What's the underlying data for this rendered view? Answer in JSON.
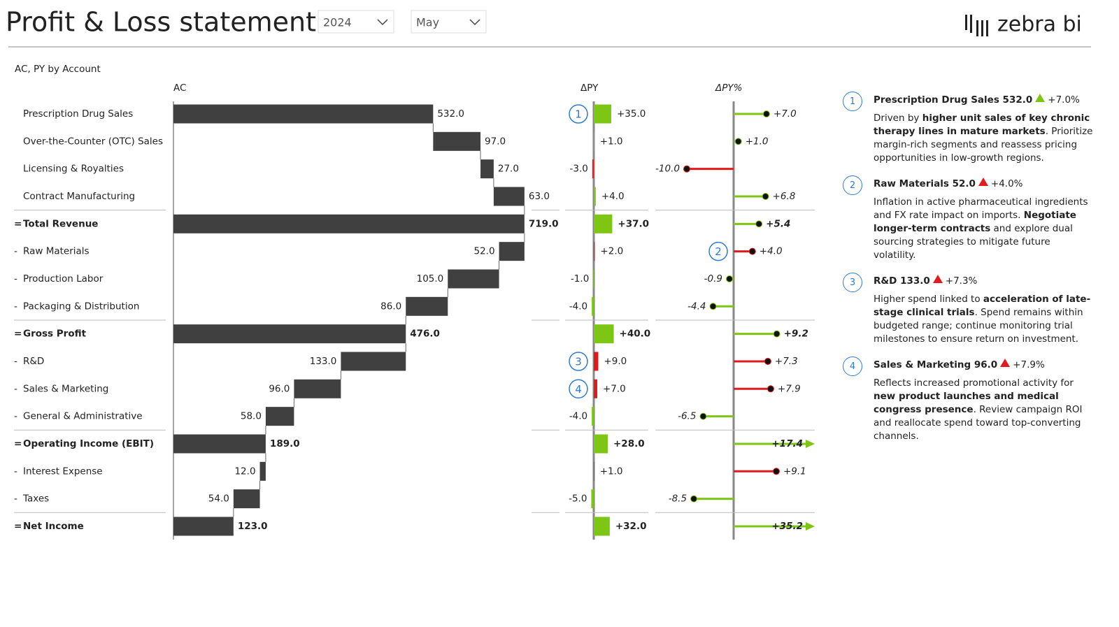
{
  "header": {
    "title": "Profit & Loss statement",
    "filters": [
      "2024",
      "May"
    ],
    "logo": "zebra bi"
  },
  "chart_data": {
    "type": "waterfall",
    "title": "AC, PY by Account",
    "categories": [
      "Prescription Drug Sales",
      "Over-the-Counter (OTC) Sales",
      "Licensing & Royalties",
      "Contract Manufacturing",
      "Total Revenue",
      "Raw Materials",
      "Production Labor",
      "Packaging & Distribution",
      "Gross Profit",
      "R&D",
      "Sales & Marketing",
      "General & Administrative",
      "Operating Income (EBIT)",
      "Interest Expense",
      "Taxes",
      "Net Income"
    ],
    "prefixes": [
      null,
      null,
      null,
      null,
      "=",
      "-",
      "-",
      "-",
      "=",
      "-",
      "-",
      "-",
      "=",
      "-",
      "-",
      "="
    ],
    "series": [
      {
        "name": "AC",
        "color": "#404040",
        "values": [
          532.0,
          97.0,
          27.0,
          63.0,
          719.0,
          52.0,
          105.0,
          86.0,
          476.0,
          133.0,
          96.0,
          58.0,
          189.0,
          12.0,
          54.0,
          123.0
        ],
        "value_labels": [
          "532.0",
          "97.0",
          "27.0",
          "63.0",
          "719.0",
          "52.0",
          "105.0",
          "86.0",
          "476.0",
          "133.0",
          "96.0",
          "58.0",
          "189.0",
          "12.0",
          "54.0",
          "123.0"
        ]
      },
      {
        "name": "ΔPY",
        "values": [
          35.0,
          1.0,
          -3.0,
          4.0,
          37.0,
          2.0,
          -1.0,
          -4.0,
          40.0,
          9.0,
          7.0,
          -4.0,
          28.0,
          1.0,
          -5.0,
          32.0
        ],
        "value_labels": [
          "+35.0",
          "+1.0",
          "-3.0",
          "+4.0",
          "+37.0",
          "+2.0",
          "-1.0",
          "-4.0",
          "+40.0",
          "+9.0",
          "+7.0",
          "-4.0",
          "+28.0",
          "+1.0",
          "-5.0",
          "+32.0"
        ],
        "colors": [
          "#7dc614",
          "#7dc614",
          "#e31a1c",
          "#7dc614",
          "#7dc614",
          "#e31a1c",
          "#7dc614",
          "#7dc614",
          "#7dc614",
          "#e31a1c",
          "#e31a1c",
          "#7dc614",
          "#7dc614",
          "#e31a1c",
          "#7dc614",
          "#7dc614"
        ]
      },
      {
        "name": "ΔPY%",
        "values": [
          7.0,
          1.0,
          -10.0,
          6.8,
          5.4,
          4.0,
          -0.9,
          -4.4,
          9.2,
          7.3,
          7.9,
          -6.5,
          17.4,
          9.1,
          -8.5,
          35.2
        ],
        "value_labels": [
          "+7.0",
          "+1.0",
          "-10.0",
          "+6.8",
          "+5.4",
          "+4.0",
          "-0.9",
          "-4.4",
          "+9.2",
          "+7.3",
          "+7.9",
          "-6.5",
          "+17.4",
          "+9.1",
          "-8.5",
          "+35.2"
        ],
        "colors": [
          "#7dc614",
          "#7dc614",
          "#e31a1c",
          "#7dc614",
          "#7dc614",
          "#e31a1c",
          "#7dc614",
          "#7dc614",
          "#7dc614",
          "#e31a1c",
          "#e31a1c",
          "#7dc614",
          "#7dc614",
          "#e31a1c",
          "#7dc614",
          "#7dc614"
        ]
      }
    ]
  },
  "notes": [
    {
      "number": 1,
      "row": 0,
      "series": 1,
      "heading": "Prescription Drug Sales 532.0",
      "arrow_color": "#7dc614",
      "change": "+7.0%",
      "body": [
        {
          "text": "Driven by "
        },
        {
          "text": "higher unit sales of key chronic therapy lines in mature markets",
          "bold": true
        },
        {
          "text": ". Prioritize margin-rich segments and reassess pricing opportunities in low-growth regions."
        }
      ]
    },
    {
      "number": 2,
      "row": 5,
      "series": 2,
      "heading": "Raw Materials 52.0",
      "arrow_color": "#e31a1c",
      "change": "+4.0%",
      "body": [
        {
          "text": "Inflation in active pharmaceutical ingredients and FX rate impact on imports. "
        },
        {
          "text": "Negotiate longer-term contracts",
          "bold": true
        },
        {
          "text": " and explore dual sourcing strategies to mitigate future volatility."
        }
      ]
    },
    {
      "number": 3,
      "row": 9,
      "series": 1,
      "heading": "R&D 133.0",
      "arrow_color": "#e31a1c",
      "change": "+7.3%",
      "body": [
        {
          "text": "Higher spend linked to "
        },
        {
          "text": "acceleration of late-stage clinical trials",
          "bold": true
        },
        {
          "text": ". Spend remains within budgeted range; continue monitoring trial milestones to ensure return on investment."
        }
      ]
    },
    {
      "number": 4,
      "row": 10,
      "series": 1,
      "heading": "Sales & Marketing 96.0",
      "arrow_color": "#e31a1c",
      "change": "+7.9%",
      "body": [
        {
          "text": "Reflects increased promotional activity for "
        },
        {
          "text": "new product launches and medical congress presence",
          "bold": true
        },
        {
          "text": ". Review campaign ROI and reallocate spend toward top-converting channels."
        }
      ]
    }
  ]
}
